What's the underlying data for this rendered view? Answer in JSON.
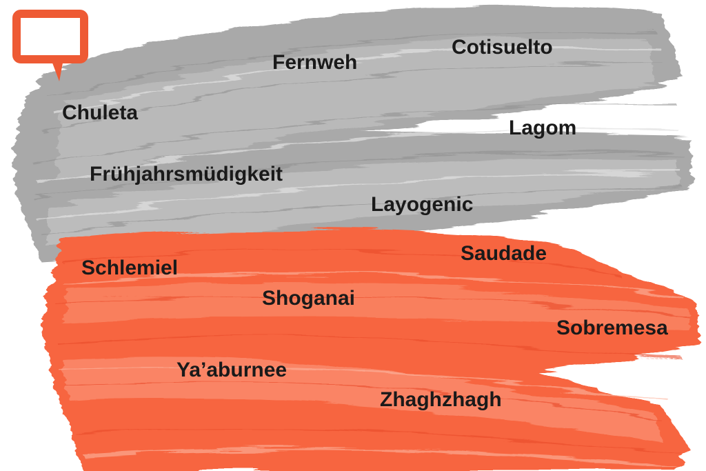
{
  "words": [
    "Fernweh",
    "Cotisuelto",
    "Chuleta",
    "Lagom",
    "Frühjahrsmüdigkeit",
    "Layogenic",
    "Saudade",
    "Schlemiel",
    "Shoganai",
    "Sobremesa",
    "Ya’aburnee",
    "Zhaghzhagh"
  ]
}
